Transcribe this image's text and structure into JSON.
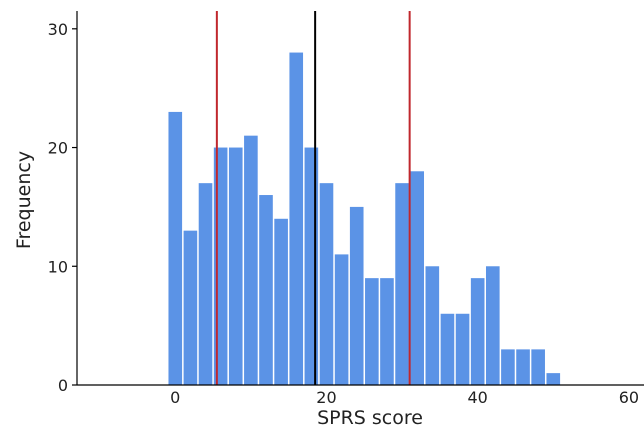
{
  "chart_data": {
    "type": "bar",
    "title": "",
    "xlabel": "SPRS score",
    "ylabel": "Frequency",
    "xlim": [
      -13,
      62
    ],
    "ylim": [
      0,
      31.5
    ],
    "x_ticks": [
      0,
      20,
      40,
      60
    ],
    "y_ticks": [
      0,
      10,
      20,
      30
    ],
    "bin_width": 2,
    "bin_starts": [
      -1,
      1,
      3,
      5,
      7,
      9,
      11,
      13,
      15,
      17,
      19,
      21,
      23,
      25,
      27,
      29,
      31,
      33,
      35,
      37,
      39,
      41,
      43,
      45,
      47,
      49
    ],
    "values": [
      23,
      13,
      17,
      20,
      20,
      21,
      16,
      14,
      28,
      20,
      17,
      11,
      15,
      9,
      9,
      17,
      18,
      10,
      6,
      6,
      9,
      10,
      3,
      3,
      3,
      1
    ],
    "bar_color": "#5b93e6",
    "vertical_lines": [
      {
        "x": 5.5,
        "color": "#c0272d"
      },
      {
        "x": 18.5,
        "color": "#000000"
      },
      {
        "x": 31,
        "color": "#c0272d"
      }
    ],
    "grid": false,
    "legend": "none"
  }
}
